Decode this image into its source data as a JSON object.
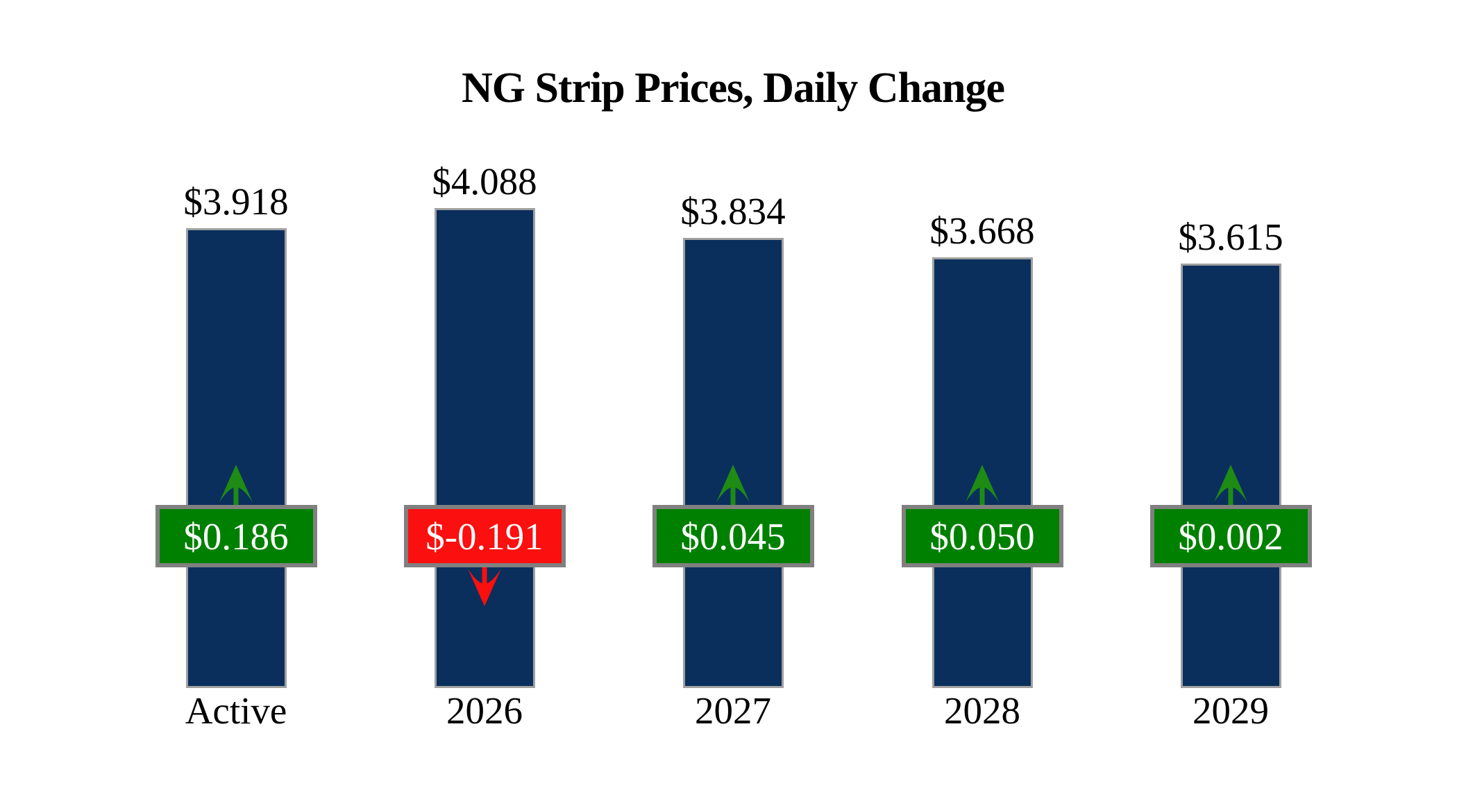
{
  "title": "NG Strip Prices, Daily Change",
  "chart_data": {
    "type": "bar",
    "title": "NG Strip Prices, Daily Change",
    "xlabel": "",
    "ylabel": "",
    "ylim": [
      0,
      4.088
    ],
    "grid": false,
    "legend": false,
    "categories": [
      "Active",
      "2026",
      "2027",
      "2028",
      "2029"
    ],
    "values": [
      3.918,
      4.088,
      3.834,
      3.668,
      3.615
    ],
    "changes": [
      0.186,
      -0.191,
      0.045,
      0.05,
      0.002
    ],
    "bars": [
      {
        "category": "Active",
        "value": 3.918,
        "value_label": "$3.918",
        "change": 0.186,
        "change_label": "$0.186",
        "direction": "up"
      },
      {
        "category": "2026",
        "value": 4.088,
        "value_label": "$4.088",
        "change": -0.191,
        "change_label": "$-0.191",
        "direction": "down"
      },
      {
        "category": "2027",
        "value": 3.834,
        "value_label": "$3.834",
        "change": 0.045,
        "change_label": "$0.045",
        "direction": "up"
      },
      {
        "category": "2028",
        "value": 3.668,
        "value_label": "$3.668",
        "change": 0.05,
        "change_label": "$0.050",
        "direction": "up"
      },
      {
        "category": "2029",
        "value": 3.615,
        "value_label": "$3.615",
        "change": 0.002,
        "change_label": "$0.002",
        "direction": "up"
      }
    ]
  },
  "colors": {
    "background": "#ffffff",
    "bar_fill": "#0a2f5c",
    "bar_border": "#a0a0a0",
    "positive_badge": "#008000",
    "negative_badge": "#fb0f0f",
    "positive_arrow": "#1e8c14",
    "negative_arrow": "#fb0f0f",
    "badge_border": "#808080",
    "badge_text": "#ffffff",
    "label_text": "#000000"
  }
}
